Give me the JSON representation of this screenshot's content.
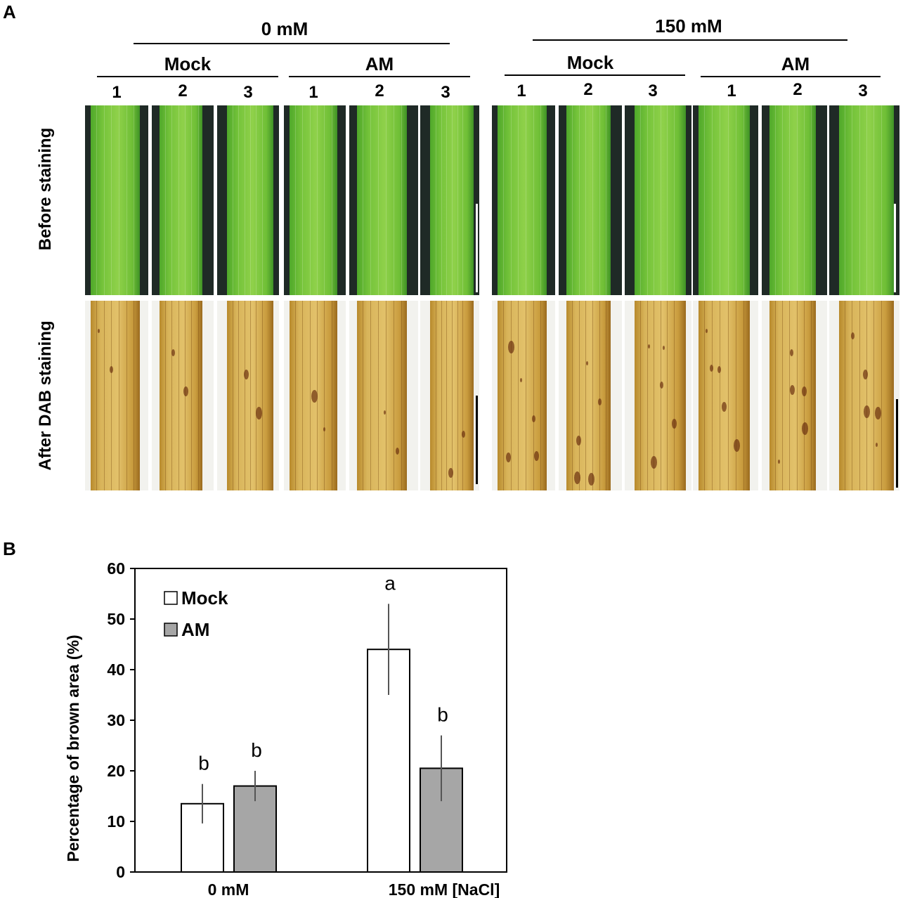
{
  "panelA": {
    "letter": "A",
    "conc_left": "0 mM",
    "conc_right": "150 mM",
    "treat_mock": "Mock",
    "treat_am": "AM",
    "reps": [
      "1",
      "2",
      "3"
    ],
    "row_before": "Before staining",
    "row_after": "After DAB staining"
  },
  "panelB": {
    "letter": "B"
  },
  "chart_data": {
    "type": "bar",
    "categories": [
      "0 mM",
      "150 mM [NaCl]"
    ],
    "series": [
      {
        "name": "Mock",
        "values": [
          13.5,
          44
        ],
        "errors": [
          3.9,
          9
        ],
        "letters": [
          "b",
          "a"
        ],
        "color": "#ffffff"
      },
      {
        "name": "AM",
        "values": [
          17,
          20.5
        ],
        "errors": [
          3,
          6.5
        ],
        "letters": [
          "b",
          "b"
        ],
        "color": "#a6a6a6"
      }
    ],
    "ylabel": "Percentage of brown area (%)",
    "xlabel": "",
    "ylim": [
      0,
      60
    ],
    "yticks": [
      "0",
      "10",
      "20",
      "30",
      "40",
      "50",
      "60"
    ],
    "legend_position": "top-left"
  }
}
